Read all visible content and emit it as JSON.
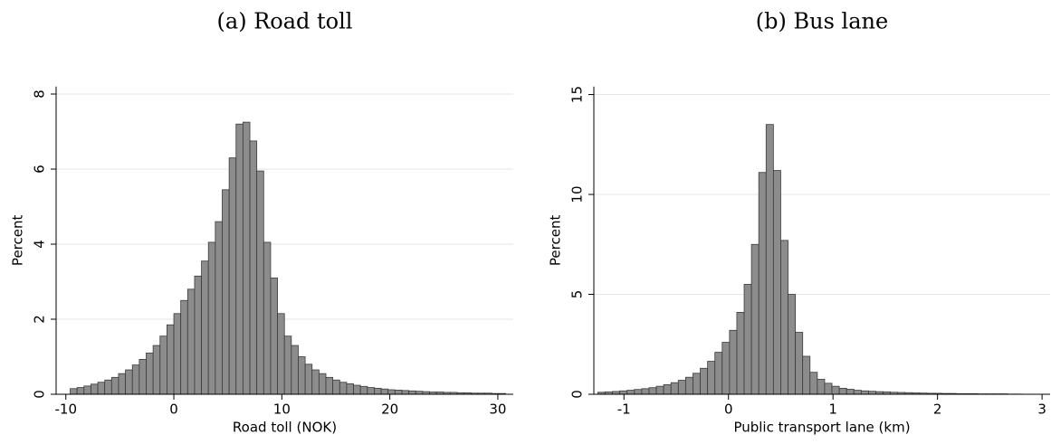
{
  "chart_data": [
    {
      "type": "histogram",
      "title": "(a) Road toll",
      "xlabel": "Road toll (NOK)",
      "ylabel": "Percent",
      "color": "#8c8c8c",
      "bins": [
        -9.6,
        -8.96,
        -8.32,
        -7.68,
        -7.04,
        -6.4,
        -5.76,
        -5.12,
        -4.48,
        -3.84,
        -3.2,
        -2.56,
        -1.92,
        -1.28,
        -0.64,
        0,
        0.64,
        1.28,
        1.92,
        2.56,
        3.2,
        3.84,
        4.48,
        5.12,
        5.76,
        6.4,
        7.04,
        7.68,
        8.32,
        8.96,
        9.6,
        10.24,
        10.88,
        11.52,
        12.16,
        12.8,
        13.44,
        14.08,
        14.72,
        15.36,
        16,
        16.64,
        17.28,
        17.92,
        18.56,
        19.2,
        19.84,
        20.48,
        21.12,
        21.76,
        22.4,
        23.04,
        23.68,
        24.32,
        24.96,
        25.6,
        26.24,
        26.88,
        27.52,
        28.16,
        28.8,
        29.44,
        30.08,
        30.72
      ],
      "values": [
        0.15,
        0.18,
        0.22,
        0.27,
        0.32,
        0.38,
        0.45,
        0.55,
        0.65,
        0.78,
        0.93,
        1.1,
        1.3,
        1.55,
        1.85,
        2.15,
        2.5,
        2.8,
        3.15,
        3.55,
        4.05,
        4.6,
        5.45,
        6.3,
        7.2,
        7.25,
        6.75,
        5.95,
        4.05,
        3.1,
        2.15,
        1.55,
        1.3,
        1.0,
        0.8,
        0.65,
        0.55,
        0.45,
        0.38,
        0.32,
        0.28,
        0.24,
        0.21,
        0.18,
        0.16,
        0.14,
        0.12,
        0.11,
        0.1,
        0.09,
        0.08,
        0.07,
        0.06,
        0.06,
        0.05,
        0.05,
        0.04,
        0.04,
        0.03,
        0.03,
        0.03,
        0.02,
        0.02
      ],
      "xlim": [
        -10.9,
        31.43
      ],
      "xticks": [
        -10,
        0,
        10,
        20,
        30
      ],
      "ylim": [
        0,
        8.2
      ],
      "yticks": [
        0,
        2,
        4,
        6,
        8
      ],
      "grid": true
    },
    {
      "type": "histogram",
      "title": "(b) Bus lane",
      "xlabel": "Public transport lane (km)",
      "ylabel": "Percent",
      "color": "#8c8c8c",
      "bins": [
        -1.25,
        -1.18,
        -1.11,
        -1.04,
        -0.97,
        -0.9,
        -0.83,
        -0.76,
        -0.69,
        -0.62,
        -0.55,
        -0.48,
        -0.41,
        -0.34,
        -0.27,
        -0.2,
        -0.13,
        -0.06,
        0.01,
        0.08,
        0.15,
        0.22,
        0.29,
        0.36,
        0.43,
        0.5,
        0.57,
        0.64,
        0.71,
        0.78,
        0.85,
        0.92,
        0.99,
        1.06,
        1.13,
        1.2,
        1.27,
        1.34,
        1.41,
        1.48,
        1.55,
        1.62,
        1.69,
        1.76,
        1.83,
        1.9,
        1.97,
        2.04,
        2.11,
        2.18,
        2.25,
        2.32,
        2.39,
        2.46,
        2.53,
        2.6,
        2.67,
        2.74,
        2.81
      ],
      "values": [
        0.1,
        0.12,
        0.14,
        0.17,
        0.2,
        0.24,
        0.28,
        0.33,
        0.4,
        0.48,
        0.58,
        0.7,
        0.85,
        1.05,
        1.3,
        1.65,
        2.1,
        2.6,
        3.2,
        4.1,
        5.5,
        7.5,
        11.1,
        13.5,
        11.2,
        7.7,
        5.0,
        3.1,
        1.9,
        1.1,
        0.75,
        0.55,
        0.4,
        0.3,
        0.25,
        0.2,
        0.17,
        0.15,
        0.13,
        0.12,
        0.1,
        0.09,
        0.08,
        0.07,
        0.06,
        0.05,
        0.05,
        0.04,
        0.04,
        0.03,
        0.03,
        0.03,
        0.02,
        0.02,
        0.02,
        0.02,
        0.01,
        0.01
      ],
      "xlim": [
        -1.288,
        3.077
      ],
      "xticks": [
        -1,
        0,
        1,
        2,
        3
      ],
      "ylim": [
        0,
        15.4
      ],
      "yticks": [
        0,
        5,
        10,
        15
      ],
      "grid": true
    }
  ]
}
